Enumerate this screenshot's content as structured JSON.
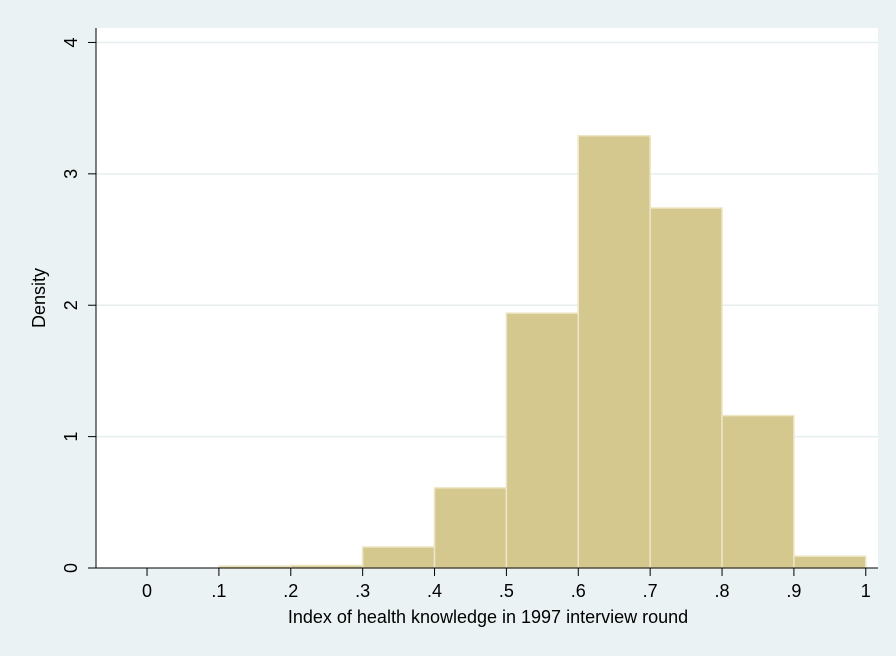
{
  "chart_data": {
    "type": "histogram",
    "xlabel": "Index of health knowledge in 1997 interview round",
    "ylabel": "Density",
    "bins": [
      0.1,
      0.2,
      0.3,
      0.4,
      0.5,
      0.6,
      0.7,
      0.8,
      0.9,
      1.0
    ],
    "values": [
      0.015,
      0.02,
      0.16,
      0.61,
      1.94,
      3.29,
      2.74,
      1.16,
      0.09
    ],
    "color": "#d5c88e",
    "xlim": [
      -0.071,
      1.017
    ],
    "ylim": [
      0,
      4.11
    ],
    "xticks": [
      0,
      {
        "value": 0.1,
        "label": ".1"
      },
      {
        "value": 0.2,
        "label": ".2"
      },
      {
        "value": 0.3,
        "label": ".3"
      },
      {
        "value": 0.4,
        "label": ".4"
      },
      {
        "value": 0.5,
        "label": ".5"
      },
      {
        "value": 0.6,
        "label": ".6"
      },
      {
        "value": 0.7,
        "label": ".7"
      },
      {
        "value": 0.8,
        "label": ".8"
      },
      {
        "value": 0.9,
        "label": ".9"
      },
      1
    ],
    "yticks": [
      0,
      1,
      2,
      3,
      4
    ],
    "grid": true
  }
}
